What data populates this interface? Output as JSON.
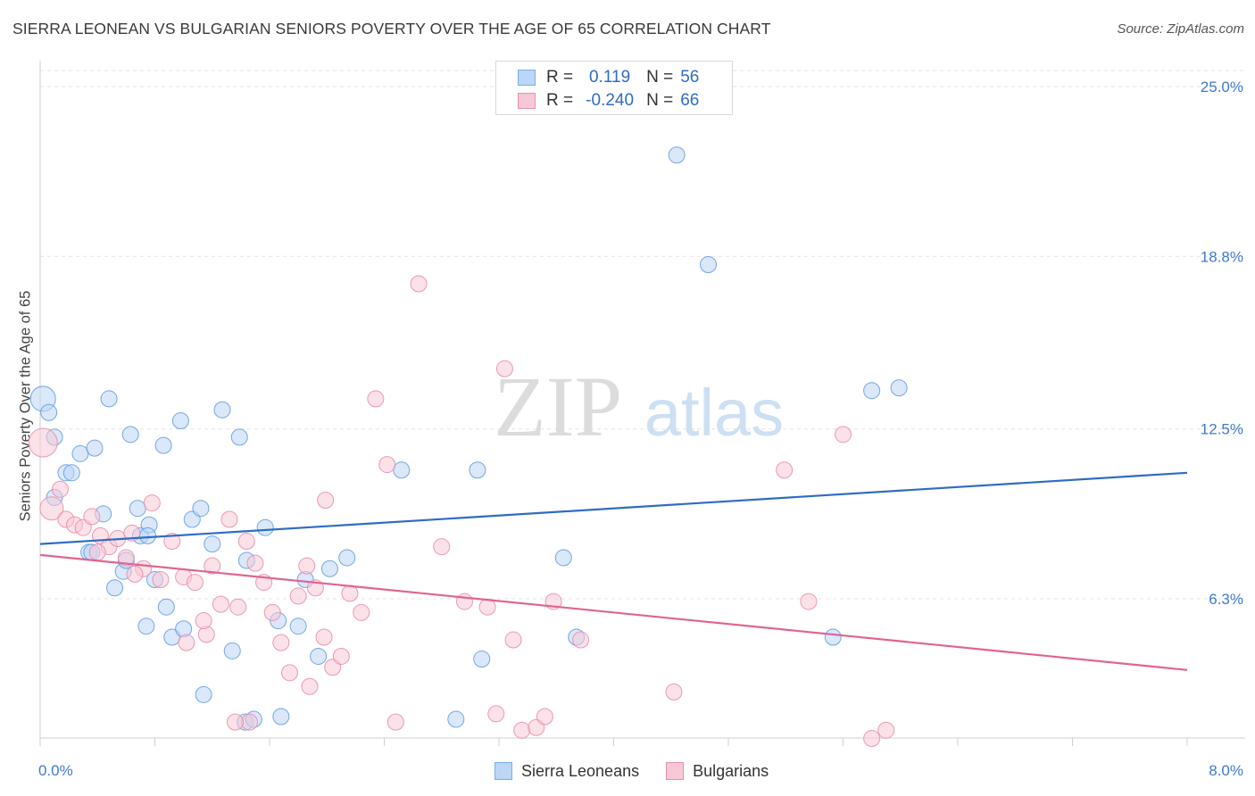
{
  "header": {
    "title": "SIERRA LEONEAN VS BULGARIAN SENIORS POVERTY OVER THE AGE OF 65 CORRELATION CHART",
    "source": "Source: ZipAtlas.com"
  },
  "watermark": {
    "zip": "ZIP",
    "atlas": "atlas"
  },
  "legend": {
    "rows": [
      {
        "r_label": "R =",
        "r_value": "0.119",
        "n_label": "N =",
        "n_value": "56",
        "color": "#7aaee6",
        "fill": "#bcd6f5"
      },
      {
        "r_label": "R =",
        "r_value": "-0.240",
        "n_label": "N =",
        "n_value": "66",
        "color": "#e890ad",
        "fill": "#f8c8d6"
      }
    ],
    "bottom": [
      "Sierra Leoneans",
      "Bulgarians"
    ]
  },
  "chart_data": {
    "type": "scatter",
    "title": "SIERRA LEONEAN VS BULGARIAN SENIORS POVERTY OVER THE AGE OF 65 CORRELATION CHART",
    "xlabel": "",
    "ylabel": "Seniors Poverty Over the Age of 65",
    "xlim": [
      0,
      8
    ],
    "ylim": [
      0,
      26
    ],
    "x_tick_labels": [
      "0.0%",
      "8.0%"
    ],
    "y_tick_labels": [
      "25.0%",
      "18.8%",
      "12.5%",
      "6.3%"
    ],
    "y_tick_values": [
      25.0,
      18.8,
      12.5,
      6.3
    ],
    "grid": true,
    "legend_position": "top-center",
    "series": [
      {
        "name": "Sierra Leoneans",
        "color": "#5b9ae0",
        "fill": "#bcd6f5",
        "trend": {
          "x": [
            0,
            8
          ],
          "y": [
            8.3,
            10.9
          ]
        },
        "points": [
          [
            0.02,
            13.6,
            14
          ],
          [
            0.06,
            13.1,
            9
          ],
          [
            0.1,
            12.2,
            9
          ],
          [
            0.1,
            10.0,
            9
          ],
          [
            0.18,
            10.9,
            9
          ],
          [
            0.22,
            10.9,
            9
          ],
          [
            0.28,
            11.6,
            9
          ],
          [
            0.38,
            11.8,
            9
          ],
          [
            0.48,
            13.6,
            9
          ],
          [
            0.44,
            9.4,
            9
          ],
          [
            0.34,
            8.0,
            9
          ],
          [
            0.36,
            8.0,
            9
          ],
          [
            0.58,
            7.3,
            9
          ],
          [
            0.6,
            7.7,
            9
          ],
          [
            0.52,
            6.7,
            9
          ],
          [
            0.68,
            9.6,
            9
          ],
          [
            0.7,
            8.6,
            9
          ],
          [
            0.76,
            9.0,
            9
          ],
          [
            0.63,
            12.3,
            9
          ],
          [
            0.86,
            11.9,
            9
          ],
          [
            0.98,
            12.8,
            9
          ],
          [
            1.06,
            9.2,
            9
          ],
          [
            1.12,
            9.6,
            9
          ],
          [
            0.8,
            7.0,
            9
          ],
          [
            0.88,
            6.0,
            9
          ],
          [
            0.92,
            4.9,
            9
          ],
          [
            1.0,
            5.2,
            9
          ],
          [
            0.74,
            5.3,
            9
          ],
          [
            1.2,
            8.3,
            9
          ],
          [
            1.27,
            13.2,
            9
          ],
          [
            1.39,
            12.2,
            9
          ],
          [
            1.44,
            7.7,
            9
          ],
          [
            1.57,
            8.9,
            9
          ],
          [
            1.34,
            4.4,
            9
          ],
          [
            1.14,
            2.8,
            9
          ],
          [
            1.43,
            1.8,
            9
          ],
          [
            1.49,
            1.9,
            9
          ],
          [
            1.68,
            2.0,
            9
          ],
          [
            1.66,
            5.5,
            9
          ],
          [
            1.8,
            5.3,
            9
          ],
          [
            1.85,
            7.0,
            9
          ],
          [
            1.94,
            4.2,
            9
          ],
          [
            2.02,
            7.4,
            9
          ],
          [
            2.14,
            7.8,
            9
          ],
          [
            2.52,
            11.0,
            9
          ],
          [
            3.05,
            11.0,
            9
          ],
          [
            2.9,
            1.9,
            9
          ],
          [
            3.08,
            4.1,
            9
          ],
          [
            3.65,
            7.8,
            9
          ],
          [
            3.74,
            4.9,
            9
          ],
          [
            4.44,
            22.5,
            9
          ],
          [
            4.66,
            18.5,
            9
          ],
          [
            5.53,
            4.9,
            9
          ],
          [
            5.8,
            13.9,
            9
          ],
          [
            5.99,
            14.0,
            9
          ],
          [
            0.75,
            8.6,
            9
          ]
        ]
      },
      {
        "name": "Bulgarians",
        "color": "#e68aa8",
        "fill": "#f8c8d6",
        "trend": {
          "x": [
            0,
            8
          ],
          "y": [
            7.9,
            3.7
          ]
        },
        "points": [
          [
            0.02,
            12.0,
            16
          ],
          [
            0.08,
            9.6,
            13
          ],
          [
            0.14,
            10.3,
            9
          ],
          [
            0.18,
            9.2,
            9
          ],
          [
            0.24,
            9.0,
            9
          ],
          [
            0.3,
            8.9,
            9
          ],
          [
            0.36,
            9.3,
            9
          ],
          [
            0.42,
            8.6,
            9
          ],
          [
            0.48,
            8.2,
            9
          ],
          [
            0.4,
            8.0,
            9
          ],
          [
            0.54,
            8.5,
            9
          ],
          [
            0.6,
            7.8,
            9
          ],
          [
            0.64,
            8.7,
            9
          ],
          [
            0.72,
            7.4,
            9
          ],
          [
            0.66,
            7.2,
            9
          ],
          [
            0.78,
            9.8,
            9
          ],
          [
            0.84,
            7.0,
            9
          ],
          [
            0.92,
            8.4,
            9
          ],
          [
            1.0,
            7.1,
            9
          ],
          [
            1.08,
            6.9,
            9
          ],
          [
            1.16,
            5.0,
            9
          ],
          [
            1.02,
            4.7,
            9
          ],
          [
            1.14,
            5.5,
            9
          ],
          [
            1.2,
            7.5,
            9
          ],
          [
            1.26,
            6.1,
            9
          ],
          [
            1.32,
            9.2,
            9
          ],
          [
            1.38,
            6.0,
            9
          ],
          [
            1.44,
            8.4,
            9
          ],
          [
            1.5,
            7.6,
            9
          ],
          [
            1.56,
            6.9,
            9
          ],
          [
            1.62,
            5.8,
            9
          ],
          [
            1.68,
            4.7,
            9
          ],
          [
            1.74,
            3.6,
            9
          ],
          [
            1.8,
            6.4,
            9
          ],
          [
            1.86,
            7.5,
            9
          ],
          [
            1.92,
            6.7,
            9
          ],
          [
            1.98,
            4.9,
            9
          ],
          [
            2.04,
            3.8,
            9
          ],
          [
            2.1,
            4.2,
            9
          ],
          [
            2.16,
            6.5,
            9
          ],
          [
            2.24,
            5.8,
            9
          ],
          [
            2.34,
            13.6,
            9
          ],
          [
            2.42,
            11.2,
            9
          ],
          [
            2.48,
            1.8,
            9
          ],
          [
            2.64,
            17.8,
            9
          ],
          [
            2.8,
            8.2,
            9
          ],
          [
            2.96,
            6.2,
            9
          ],
          [
            3.12,
            6.0,
            9
          ],
          [
            3.18,
            2.1,
            9
          ],
          [
            3.24,
            14.7,
            9
          ],
          [
            3.3,
            4.8,
            9
          ],
          [
            3.36,
            1.5,
            9
          ],
          [
            3.46,
            1.6,
            9
          ],
          [
            3.52,
            2.0,
            9
          ],
          [
            3.58,
            6.2,
            9
          ],
          [
            3.77,
            4.8,
            9
          ],
          [
            4.42,
            2.9,
            9
          ],
          [
            5.19,
            11.0,
            9
          ],
          [
            5.36,
            6.2,
            9
          ],
          [
            5.6,
            12.3,
            9
          ],
          [
            5.8,
            1.2,
            9
          ],
          [
            5.9,
            1.5,
            9
          ],
          [
            1.99,
            9.9,
            9
          ],
          [
            1.46,
            1.8,
            9
          ],
          [
            1.36,
            1.8,
            9
          ],
          [
            1.88,
            3.1,
            9
          ]
        ]
      }
    ]
  }
}
